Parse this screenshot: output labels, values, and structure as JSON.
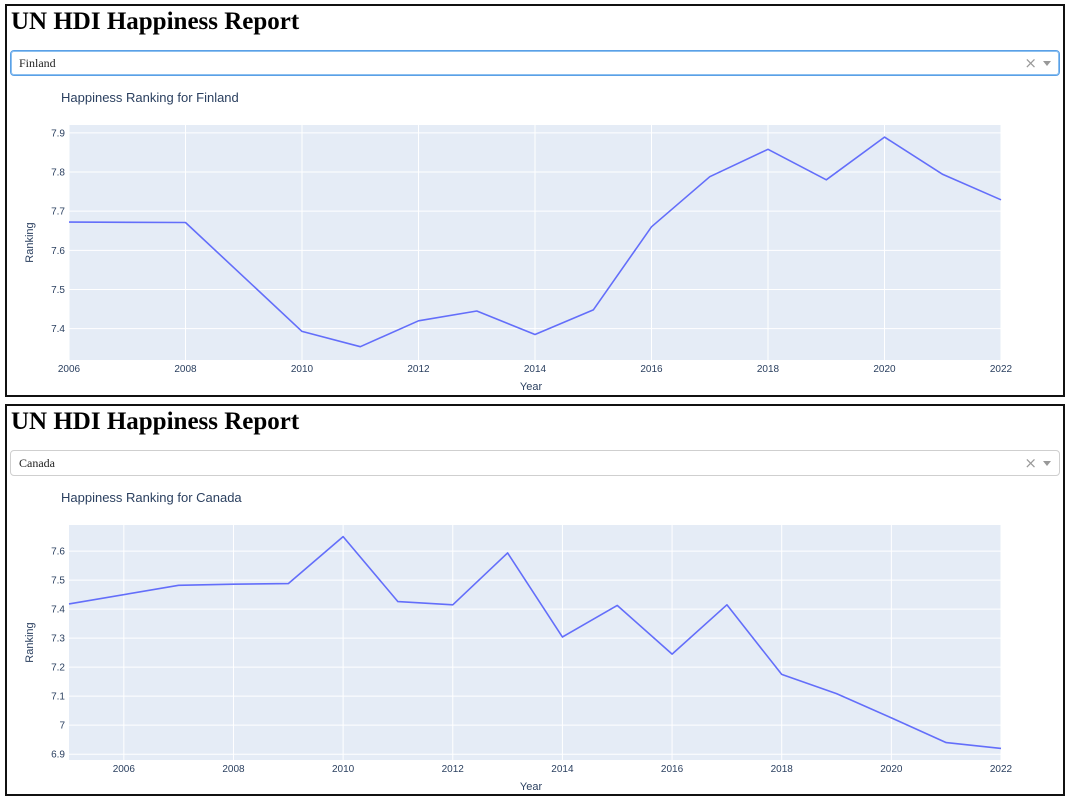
{
  "panels": [
    {
      "app_title": "UN HDI Happiness Report",
      "dropdown_value": "Finland",
      "clear_icon": "×",
      "focused": true
    },
    {
      "app_title": "UN HDI Happiness Report",
      "dropdown_value": "Canada",
      "clear_icon": "×",
      "focused": false
    }
  ],
  "colors": {
    "plot_bg": "#e5ecf6",
    "line": "#636efa",
    "grid": "#ffffff",
    "text": "#2a3f5f"
  },
  "chart_data": [
    {
      "type": "line",
      "title": "Happiness Ranking for Finland",
      "xlabel": "Year",
      "ylabel": "Ranking",
      "xlim": [
        2006,
        2022
      ],
      "ylim": [
        7.32,
        7.92
      ],
      "x_ticks": [
        2006,
        2008,
        2010,
        2012,
        2014,
        2016,
        2018,
        2020,
        2022
      ],
      "y_ticks": [
        7.4,
        7.5,
        7.6,
        7.7,
        7.8,
        7.9
      ],
      "y_tick_labels": [
        "7.4",
        "7.5",
        "7.6",
        "7.7",
        "7.8",
        "7.9"
      ],
      "grid": true,
      "x": [
        2006,
        2008,
        2010,
        2011,
        2012,
        2013,
        2014,
        2015,
        2016,
        2017,
        2018,
        2019,
        2020,
        2021,
        2022
      ],
      "y": [
        7.672,
        7.671,
        7.393,
        7.354,
        7.42,
        7.445,
        7.385,
        7.448,
        7.66,
        7.788,
        7.858,
        7.78,
        7.889,
        7.794,
        7.729
      ]
    },
    {
      "type": "line",
      "title": "Happiness Ranking for Canada",
      "xlabel": "Year",
      "ylabel": "Ranking",
      "xlim": [
        2005,
        2022
      ],
      "ylim": [
        6.88,
        7.69
      ],
      "x_ticks": [
        2006,
        2008,
        2010,
        2012,
        2014,
        2016,
        2018,
        2020,
        2022
      ],
      "y_ticks": [
        6.9,
        7.0,
        7.1,
        7.2,
        7.3,
        7.4,
        7.5,
        7.6
      ],
      "y_tick_labels": [
        "6.9",
        "7",
        "7.1",
        "7.2",
        "7.3",
        "7.4",
        "7.5",
        "7.6"
      ],
      "grid": true,
      "x": [
        2005,
        2007,
        2008,
        2009,
        2010,
        2011,
        2012,
        2013,
        2014,
        2015,
        2016,
        2017,
        2018,
        2019,
        2020,
        2021,
        2022
      ],
      "y": [
        7.418,
        7.482,
        7.486,
        7.488,
        7.65,
        7.426,
        7.415,
        7.594,
        7.304,
        7.413,
        7.245,
        7.415,
        7.175,
        7.109,
        7.025,
        6.94,
        6.92
      ]
    }
  ]
}
